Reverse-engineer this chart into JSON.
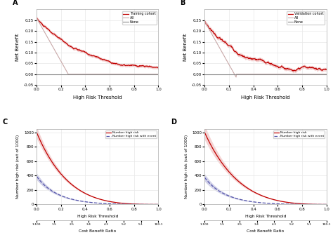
{
  "panel_A": {
    "label": "A",
    "xlabel": "High Risk Threshold",
    "ylabel": "Net Benefit",
    "ylim": [
      -0.05,
      0.3
    ],
    "yticks": [
      -0.05,
      0.0,
      0.05,
      0.1,
      0.15,
      0.2,
      0.25
    ],
    "xlim": [
      0.0,
      1.0
    ],
    "legend": [
      "Training cohort",
      "All",
      "None"
    ]
  },
  "panel_B": {
    "label": "B",
    "xlabel": "High Risk Threshold",
    "ylabel": "Net Benefit",
    "ylim": [
      -0.05,
      0.3
    ],
    "yticks": [
      -0.05,
      0.0,
      0.05,
      0.1,
      0.15,
      0.2,
      0.25
    ],
    "xlim": [
      0.0,
      1.0
    ],
    "legend": [
      "Validation cohort",
      "All",
      "None"
    ]
  },
  "panel_C": {
    "label": "C",
    "xlabel": "High Risk Threshold",
    "ylabel": "Number high risk (out of 1000)",
    "ylim": [
      0,
      1050
    ],
    "yticks": [
      0,
      200,
      400,
      600,
      800,
      1000
    ],
    "xlim": [
      0.0,
      1.0
    ],
    "legend": [
      "Number high risk",
      "Number high risk with event"
    ],
    "cb_pos": [
      0.0,
      0.143,
      0.286,
      0.429,
      0.571,
      0.714,
      0.857,
      1.0
    ],
    "cb_labels": [
      "1:100",
      "1.5",
      "2.5",
      "3.4",
      "4.3",
      "5.2",
      "5.1",
      "100:1"
    ]
  },
  "panel_D": {
    "label": "D",
    "xlabel": "High Risk Threshold",
    "ylabel": "Number high risk (out of 1000)",
    "ylim": [
      0,
      1050
    ],
    "yticks": [
      0,
      200,
      400,
      600,
      800,
      1000
    ],
    "xlim": [
      0.0,
      1.0
    ],
    "legend": [
      "Number high risk",
      "Number high risk with event"
    ],
    "cb_pos": [
      0.0,
      0.143,
      0.286,
      0.429,
      0.571,
      0.714,
      0.857,
      1.0
    ],
    "cb_labels": [
      "1:100",
      "1.5",
      "2.5",
      "3.4",
      "4.3",
      "5.2",
      "5.1",
      "100:1"
    ]
  },
  "colors": {
    "model_red": "#c00000",
    "model_red_ci": "#e8a0a0",
    "all_line": "#c8a8a8",
    "none_line": "#888888",
    "blue_dash": "#5555aa",
    "blue_ci": "#9999cc",
    "background": "#ffffff",
    "grid": "#e8e8e8"
  }
}
